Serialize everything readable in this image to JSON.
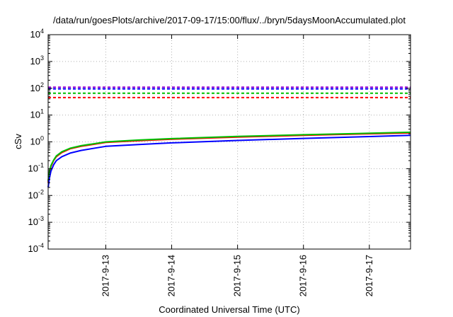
{
  "chart_data": {
    "type": "line",
    "title": "/data/run/goesPlots/archive/2017-09-17/15:00/flux/../bryn/5daysMoonAccumulated.plot",
    "xlabel": "Coordinated Universal Time (UTC)",
    "ylabel": "cSv",
    "yscale": "log",
    "ylim": [
      0.0001,
      10000
    ],
    "yticks": [
      {
        "value": 0.0001,
        "base": "10",
        "exp": "-4"
      },
      {
        "value": 0.001,
        "base": "10",
        "exp": "-3"
      },
      {
        "value": 0.01,
        "base": "10",
        "exp": "-2"
      },
      {
        "value": 0.1,
        "base": "10",
        "exp": "-1"
      },
      {
        "value": 1,
        "base": "10",
        "exp": "0"
      },
      {
        "value": 10,
        "base": "10",
        "exp": "1"
      },
      {
        "value": 100,
        "base": "10",
        "exp": "2"
      },
      {
        "value": 1000,
        "base": "10",
        "exp": "3"
      },
      {
        "value": 10000,
        "base": "10",
        "exp": "4"
      }
    ],
    "xlim": [
      "2017-09-12T03:00",
      "2017-09-17T15:00"
    ],
    "xticks": [
      {
        "value": "2017-09-13T00:00",
        "label": "2017-9-13"
      },
      {
        "value": "2017-09-14T00:00",
        "label": "2017-9-14"
      },
      {
        "value": "2017-09-15T00:00",
        "label": "2017-9-15"
      },
      {
        "value": "2017-09-16T00:00",
        "label": "2017-9-16"
      },
      {
        "value": "2017-09-17T00:00",
        "label": "2017-9-17"
      }
    ],
    "grid": true,
    "series": [
      {
        "color": "#ff0000",
        "style": "dashed",
        "x": [
          "2017-09-12T03:00",
          "2017-09-17T15:00"
        ],
        "values": [
          45,
          45
        ]
      },
      {
        "color": "#00c000",
        "style": "dashed",
        "x": [
          "2017-09-12T03:00",
          "2017-09-17T15:00"
        ],
        "values": [
          65,
          65
        ]
      },
      {
        "color": "#0000ff",
        "style": "dashed",
        "x": [
          "2017-09-12T03:00",
          "2017-09-17T15:00"
        ],
        "values": [
          95,
          95
        ]
      },
      {
        "color": "#9400d3",
        "style": "dashed",
        "x": [
          "2017-09-12T03:00",
          "2017-09-17T15:00"
        ],
        "values": [
          110,
          110
        ]
      },
      {
        "color": "#ff0000",
        "style": "solid",
        "x": [
          "2017-09-12T03:00",
          "2017-09-12T03:30",
          "2017-09-12T04:00",
          "2017-09-12T05:00",
          "2017-09-12T06:00",
          "2017-09-12T08:00",
          "2017-09-12T11:00",
          "2017-09-12T15:00",
          "2017-09-13T00:00",
          "2017-09-13T12:00",
          "2017-09-14T00:00",
          "2017-09-15T00:00",
          "2017-09-16T00:00",
          "2017-09-17T00:00",
          "2017-09-17T15:00"
        ],
        "values": [
          0.03,
          0.07,
          0.12,
          0.2,
          0.28,
          0.4,
          0.55,
          0.68,
          0.95,
          1.1,
          1.25,
          1.5,
          1.75,
          2.0,
          2.15
        ]
      },
      {
        "color": "#00c000",
        "style": "solid",
        "x": [
          "2017-09-12T03:00",
          "2017-09-12T03:30",
          "2017-09-12T04:00",
          "2017-09-12T05:00",
          "2017-09-12T06:00",
          "2017-09-12T08:00",
          "2017-09-12T11:00",
          "2017-09-12T15:00",
          "2017-09-13T00:00",
          "2017-09-13T12:00",
          "2017-09-14T00:00",
          "2017-09-15T00:00",
          "2017-09-16T00:00",
          "2017-09-17T00:00",
          "2017-09-17T15:00"
        ],
        "values": [
          0.035,
          0.08,
          0.13,
          0.21,
          0.3,
          0.43,
          0.58,
          0.72,
          1.0,
          1.17,
          1.32,
          1.6,
          1.85,
          2.1,
          2.28
        ]
      },
      {
        "color": "#0000ff",
        "style": "solid",
        "x": [
          "2017-09-12T03:00",
          "2017-09-12T03:30",
          "2017-09-12T04:00",
          "2017-09-12T05:00",
          "2017-09-12T06:00",
          "2017-09-12T08:00",
          "2017-09-12T11:00",
          "2017-09-12T15:00",
          "2017-09-13T00:00",
          "2017-09-13T12:00",
          "2017-09-14T00:00",
          "2017-09-15T00:00",
          "2017-09-16T00:00",
          "2017-09-17T00:00",
          "2017-09-17T15:00"
        ],
        "values": [
          0.02,
          0.045,
          0.08,
          0.14,
          0.2,
          0.28,
          0.38,
          0.48,
          0.68,
          0.8,
          0.92,
          1.13,
          1.35,
          1.58,
          1.75
        ]
      }
    ]
  }
}
